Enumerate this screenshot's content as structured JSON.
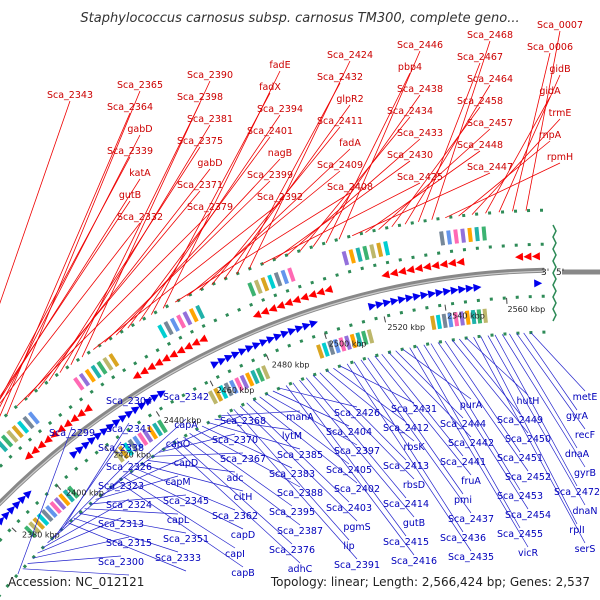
{
  "title": "Staphylococcus carnosus subsp. carnosus TM300, complete geno...",
  "footer": {
    "accession": "Accession: NC_012121",
    "topology": "Topology: linear; Length: 2,566,424 bp; Genes: 2,537"
  },
  "origin": {
    "left": "3'",
    "right": "5'"
  },
  "colors": {
    "forward": "#ff0000",
    "reverse": "#0000ee",
    "backbone": "#888888",
    "dots": "#2e8b57"
  },
  "ticks": [
    "2380 kbp",
    "2400 kbp",
    "2420 kbp",
    "2440 kbp",
    "2460 kbp",
    "2480 kbp",
    "2500 kbp",
    "2520 kbp",
    "2540 kbp",
    "2560 kbp"
  ],
  "top_labels": [
    "Sca_0007",
    "Sca_0006",
    "gidB",
    "gidA",
    "trmE",
    "rnpA",
    "rpmH",
    "Sca_2468",
    "Sca_2467",
    "Sca_2464",
    "Sca_2458",
    "Sca_2457",
    "Sca_2448",
    "Sca_2447",
    "Sca_2446",
    "pbp4",
    "Sca_2438",
    "Sca_2434",
    "Sca_2433",
    "Sca_2430",
    "Sca_2425",
    "Sca_2424",
    "Sca_2432",
    "glpR2",
    "Sca_2411",
    "fadA",
    "Sca_2409",
    "Sca_2408",
    "fadE",
    "fadX",
    "Sca_2394",
    "Sca_2401",
    "nagB",
    "Sca_2399",
    "Sca_2392",
    "Sca_2390",
    "Sca_2398",
    "Sca_2381",
    "Sca_2375",
    "gabD",
    "Sca_2371",
    "Sca_2379",
    "Sca_2365",
    "Sca_2364",
    "gabD",
    "Sca_2339",
    "katA",
    "gutB",
    "Sca_2332",
    "Sca_2343"
  ],
  "bottom_labels": [
    "metE",
    "gyrA",
    "recF",
    "dnaA",
    "gyrB",
    "Sca_2472",
    "dnaN",
    "rplI",
    "serS",
    "hutH",
    "Sca_2449",
    "Sca_2450",
    "Sca_2451",
    "Sca_2452",
    "Sca_2453",
    "Sca_2454",
    "Sca_2455",
    "vicR",
    "purA",
    "Sca_2444",
    "Sca_2442",
    "Sca_2441",
    "fruA",
    "pmi",
    "Sca_2437",
    "Sca_2436",
    "Sca_2435",
    "Sca_2431",
    "Sca_2412",
    "rbsK",
    "Sca_2413",
    "rbsD",
    "Sca_2414",
    "gutB",
    "Sca_2415",
    "Sca_2416",
    "Sca_2426",
    "Sca_2404",
    "Sca_2397",
    "Sca_2405",
    "Sca_2402",
    "Sca_2403",
    "pgmS",
    "lip",
    "Sca_2391",
    "manA",
    "lytM",
    "Sca_2385",
    "Sca_2383",
    "Sca_2388",
    "Sca_2395",
    "Sca_2387",
    "Sca_2376",
    "adhC",
    "Sca_2368",
    "Sca_2370",
    "Sca_2367",
    "adc",
    "citH",
    "Sca_2362",
    "capD",
    "capI",
    "capB",
    "capA",
    "capO",
    "capD",
    "capM",
    "Sca_2345",
    "capL",
    "Sca_2351",
    "Sca_2333",
    "Sca_2342",
    "Sca_2341",
    "Sca_2338",
    "Sca_2326",
    "Sca_2323",
    "Sca_2324",
    "Sca_2313",
    "Sca_2315",
    "Sca_2300",
    "Sca_2304",
    "Sca_2299"
  ]
}
